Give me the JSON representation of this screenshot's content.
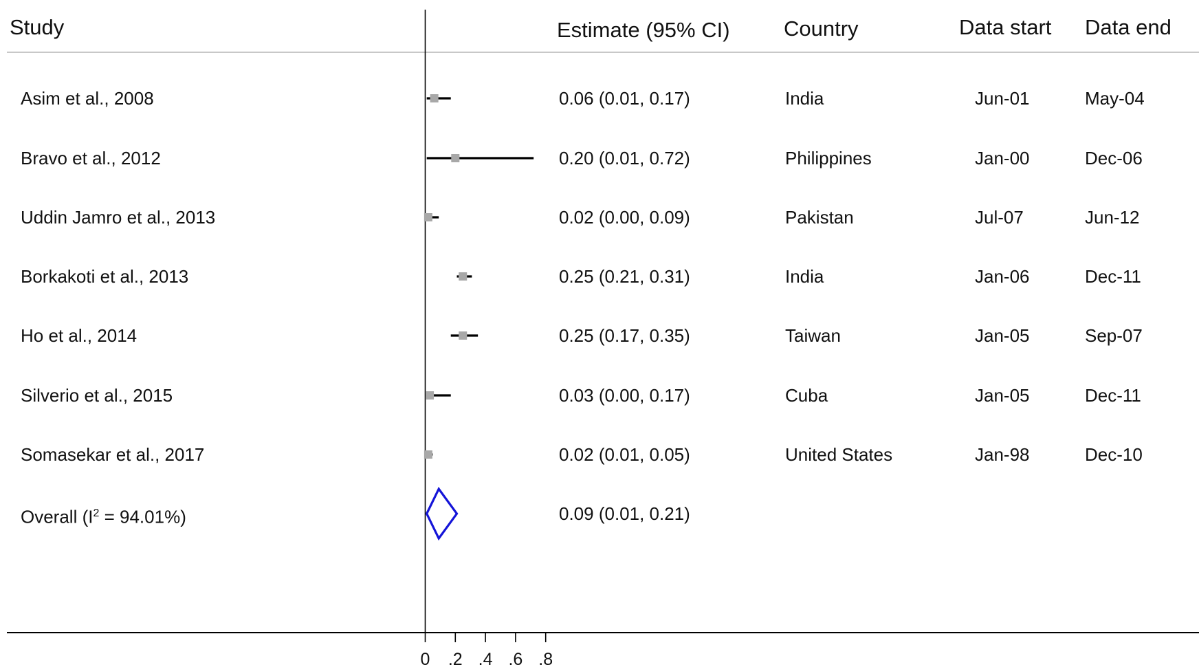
{
  "headers": {
    "study": "Study",
    "estimate": "Estimate (95% CI)",
    "country": "Country",
    "data_start": "Data start",
    "data_end": "Data end"
  },
  "rows": [
    {
      "study": "Asim et al., 2008",
      "estimate_text": "0.06 (0.01, 0.17)",
      "country": "India",
      "data_start": "Jun-01",
      "data_end": "May-04"
    },
    {
      "study": "Bravo et al., 2012",
      "estimate_text": "0.20 (0.01, 0.72)",
      "country": "Philippines",
      "data_start": "Jan-00",
      "data_end": "Dec-06"
    },
    {
      "study": "Uddin Jamro et al., 2013",
      "estimate_text": "0.02 (0.00, 0.09)",
      "country": "Pakistan",
      "data_start": "Jul-07",
      "data_end": "Jun-12"
    },
    {
      "study": "Borkakoti et al., 2013",
      "estimate_text": "0.25 (0.21, 0.31)",
      "country": "India",
      "data_start": "Jan-06",
      "data_end": "Dec-11"
    },
    {
      "study": "Ho et al., 2014",
      "estimate_text": "0.25 (0.17, 0.35)",
      "country": "Taiwan",
      "data_start": "Jan-05",
      "data_end": "Sep-07"
    },
    {
      "study": "Silverio et al., 2015",
      "estimate_text": "0.03 (0.00, 0.17)",
      "country": "Cuba",
      "data_start": "Jan-05",
      "data_end": "Dec-11"
    },
    {
      "study": "Somasekar et al., 2017",
      "estimate_text": "0.02 (0.01, 0.05)",
      "country": "United States",
      "data_start": "Jan-98",
      "data_end": "Dec-10"
    }
  ],
  "overall": {
    "label_prefix": "Overall  (I",
    "label_sup": "2",
    "label_suffix": " = 94.01%)",
    "estimate_text": "0.09 (0.01, 0.21)"
  },
  "chart_data": {
    "type": "forest",
    "x_ticks": [
      0,
      0.2,
      0.4,
      0.6,
      0.8
    ],
    "x_tick_labels": [
      "0",
      ".2",
      ".4",
      ".6",
      ".8"
    ],
    "xlim": [
      0,
      0.8
    ],
    "series": [
      {
        "study": "Asim et al., 2008",
        "estimate": 0.06,
        "lower": 0.01,
        "upper": 0.17
      },
      {
        "study": "Bravo et al., 2012",
        "estimate": 0.2,
        "lower": 0.01,
        "upper": 0.72
      },
      {
        "study": "Uddin Jamro et al., 2013",
        "estimate": 0.02,
        "lower": 0.0,
        "upper": 0.09
      },
      {
        "study": "Borkakoti et al., 2013",
        "estimate": 0.25,
        "lower": 0.21,
        "upper": 0.31
      },
      {
        "study": "Ho et al., 2014",
        "estimate": 0.25,
        "lower": 0.17,
        "upper": 0.35
      },
      {
        "study": "Silverio et al., 2015",
        "estimate": 0.03,
        "lower": 0.0,
        "upper": 0.17
      },
      {
        "study": "Somasekar et al., 2017",
        "estimate": 0.02,
        "lower": 0.01,
        "upper": 0.05
      }
    ],
    "overall": {
      "estimate": 0.09,
      "lower": 0.01,
      "upper": 0.21
    },
    "colors": {
      "ci_line": "#000000",
      "point_marker": "#a8a8a8",
      "overall_diamond": "#1414d8",
      "axis": "#000000",
      "header_rule": "#c8c8c8"
    }
  }
}
